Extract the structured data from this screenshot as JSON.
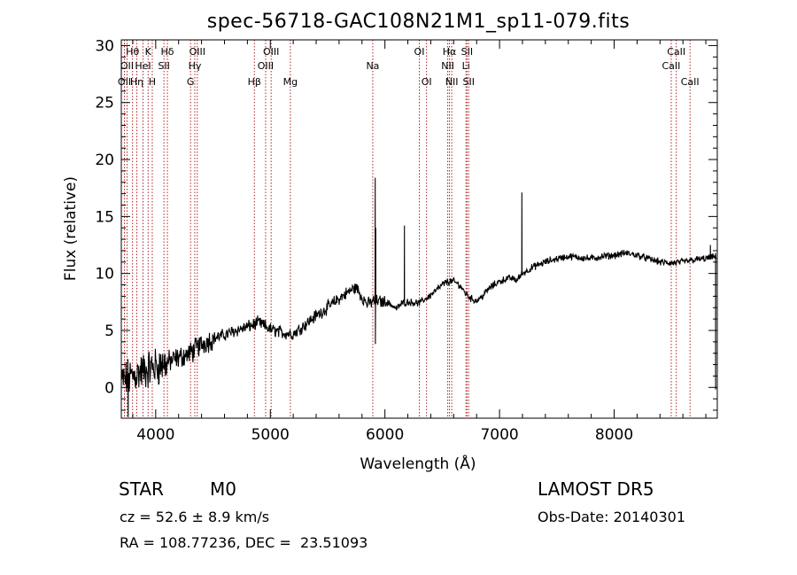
{
  "chart_data": {
    "type": "line",
    "title": "spec-56718-GAC108N21M1_sp11-079.fits",
    "xlabel": "Wavelength (Å)",
    "ylabel": "Flux (relative)",
    "xlim": [
      3700,
      8900
    ],
    "ylim": [
      -2.7,
      30.5
    ],
    "x_ticks": [
      4000,
      5000,
      6000,
      7000,
      8000
    ],
    "y_ticks": [
      0,
      5,
      10,
      15,
      20,
      25,
      30
    ],
    "grid": false,
    "continuum": [
      [
        3700,
        0.5
      ],
      [
        3800,
        1.0
      ],
      [
        3900,
        1.5
      ],
      [
        4000,
        1.8
      ],
      [
        4100,
        2.2
      ],
      [
        4200,
        2.6
      ],
      [
        4300,
        3.0
      ],
      [
        4400,
        3.8
      ],
      [
        4500,
        4.3
      ],
      [
        4600,
        4.6
      ],
      [
        4700,
        5.0
      ],
      [
        4800,
        5.3
      ],
      [
        4850,
        5.5
      ],
      [
        4900,
        5.7
      ],
      [
        4950,
        5.4
      ],
      [
        5000,
        5.1
      ],
      [
        5100,
        4.8
      ],
      [
        5200,
        4.7
      ],
      [
        5300,
        5.5
      ],
      [
        5400,
        6.3
      ],
      [
        5500,
        7.0
      ],
      [
        5600,
        7.8
      ],
      [
        5700,
        8.5
      ],
      [
        5750,
        8.8
      ],
      [
        5800,
        7.9
      ],
      [
        5850,
        7.3
      ],
      [
        5900,
        7.6
      ],
      [
        6000,
        7.5
      ],
      [
        6050,
        7.3
      ],
      [
        6100,
        6.9
      ],
      [
        6150,
        7.4
      ],
      [
        6200,
        7.5
      ],
      [
        6300,
        7.4
      ],
      [
        6400,
        8.1
      ],
      [
        6500,
        9.0
      ],
      [
        6550,
        9.3
      ],
      [
        6600,
        9.3
      ],
      [
        6650,
        9.0
      ],
      [
        6700,
        8.3
      ],
      [
        6750,
        7.8
      ],
      [
        6800,
        7.6
      ],
      [
        6850,
        8.0
      ],
      [
        6900,
        8.6
      ],
      [
        6950,
        9.0
      ],
      [
        7000,
        9.3
      ],
      [
        7050,
        9.5
      ],
      [
        7100,
        9.6
      ],
      [
        7150,
        9.4
      ],
      [
        7200,
        10.0
      ],
      [
        7300,
        10.6
      ],
      [
        7400,
        11.0
      ],
      [
        7500,
        11.3
      ],
      [
        7600,
        11.5
      ],
      [
        7700,
        11.4
      ],
      [
        7800,
        11.3
      ],
      [
        7900,
        11.5
      ],
      [
        8000,
        11.6
      ],
      [
        8100,
        11.8
      ],
      [
        8200,
        11.6
      ],
      [
        8300,
        11.3
      ],
      [
        8400,
        11.0
      ],
      [
        8500,
        10.9
      ],
      [
        8600,
        11.0
      ],
      [
        8700,
        11.2
      ],
      [
        8800,
        11.3
      ],
      [
        8900,
        11.5
      ]
    ],
    "spikes": [
      {
        "x": 5915,
        "y": 18.4
      },
      {
        "x": 5920,
        "y": 14.0
      },
      {
        "x": 6170,
        "y": 14.2
      },
      {
        "x": 7195,
        "y": 17.1
      },
      {
        "x": 3760,
        "y": -2.6
      },
      {
        "x": 5917,
        "y": 3.8
      },
      {
        "x": 8840,
        "y": 12.5
      },
      {
        "x": 8885,
        "y": -0.2
      }
    ],
    "lines": [
      {
        "x": 3727,
        "row": 3,
        "label": "OII"
      },
      {
        "x": 3750,
        "row": 2,
        "label": "OII"
      },
      {
        "x": 3798,
        "row": 1,
        "label": "Hθ"
      },
      {
        "x": 3835,
        "row": 3,
        "label": "Hη"
      },
      {
        "x": 3889,
        "row": 2,
        "label": "HeI"
      },
      {
        "x": 3934,
        "row": 1,
        "label": "K"
      },
      {
        "x": 3970,
        "row": 3,
        "label": "H"
      },
      {
        "x": 4072,
        "row": 2,
        "label": "SII"
      },
      {
        "x": 4102,
        "row": 1,
        "label": "Hδ"
      },
      {
        "x": 4304,
        "row": 3,
        "label": "G"
      },
      {
        "x": 4341,
        "row": 2,
        "label": "Hγ"
      },
      {
        "x": 4363,
        "row": 1,
        "label": "OIII"
      },
      {
        "x": 4861,
        "row": 3,
        "label": "Hβ"
      },
      {
        "x": 4959,
        "row": 2,
        "label": "OIII"
      },
      {
        "x": 5007,
        "row": 1,
        "label": "OIII"
      },
      {
        "x": 5175,
        "row": 3,
        "label": "Mg"
      },
      {
        "x": 5894,
        "row": 2,
        "label": "Na"
      },
      {
        "x": 6300,
        "row": 1,
        "label": "OI"
      },
      {
        "x": 6363,
        "row": 3,
        "label": "OI"
      },
      {
        "x": 6548,
        "row": 2,
        "label": "NII"
      },
      {
        "x": 6563,
        "row": 1,
        "label": "Hα"
      },
      {
        "x": 6583,
        "row": 3,
        "label": "NII"
      },
      {
        "x": 6707,
        "row": 2,
        "label": "Li"
      },
      {
        "x": 6716,
        "row": 1,
        "label": "SII"
      },
      {
        "x": 6731,
        "row": 3,
        "label": "SII"
      },
      {
        "x": 8498,
        "row": 2,
        "label": "CaII"
      },
      {
        "x": 8542,
        "row": 1,
        "label": "CaII"
      },
      {
        "x": 8662,
        "row": 3,
        "label": "CaII"
      }
    ],
    "colors": {
      "spectrum": "#000000",
      "lines": "#b22222",
      "axes": "#000000",
      "background": "#ffffff"
    }
  },
  "info": {
    "object_class": "STAR",
    "subclass": "M0",
    "survey": "LAMOST DR5",
    "redshift": "cz = 52.6 ± 8.9 km/s",
    "obs_date": "Obs-Date: 20140301",
    "coords": "RA = 108.77236, DEC =  23.51093"
  }
}
